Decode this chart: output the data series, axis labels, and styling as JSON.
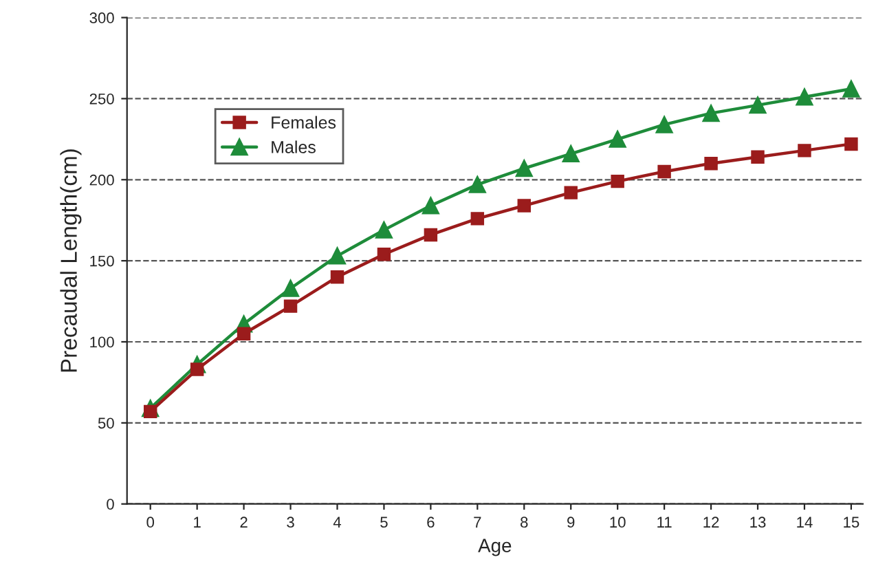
{
  "chart_data": {
    "type": "line",
    "xlabel": "Age",
    "ylabel": "Precaudal Length(cm)",
    "categories": [
      "0",
      "1",
      "2",
      "3",
      "4",
      "5",
      "6",
      "7",
      "8",
      "9",
      "10",
      "11",
      "12",
      "13",
      "14",
      "15"
    ],
    "series": [
      {
        "name": "Females",
        "color": "#9b1c1c",
        "marker": "square",
        "values": [
          57,
          83,
          105,
          122,
          140,
          154,
          166,
          176,
          184,
          192,
          199,
          205,
          210,
          214,
          218,
          222
        ]
      },
      {
        "name": "Males",
        "color": "#1e8c3a",
        "marker": "triangle",
        "values": [
          59,
          86,
          111,
          133,
          153,
          169,
          184,
          197,
          207,
          216,
          225,
          234,
          241,
          246,
          251,
          256
        ]
      }
    ],
    "ylim": [
      0,
      300
    ],
    "yticks": [
      0,
      50,
      100,
      150,
      200,
      250,
      300
    ],
    "grid": "y",
    "legend": "top left"
  }
}
